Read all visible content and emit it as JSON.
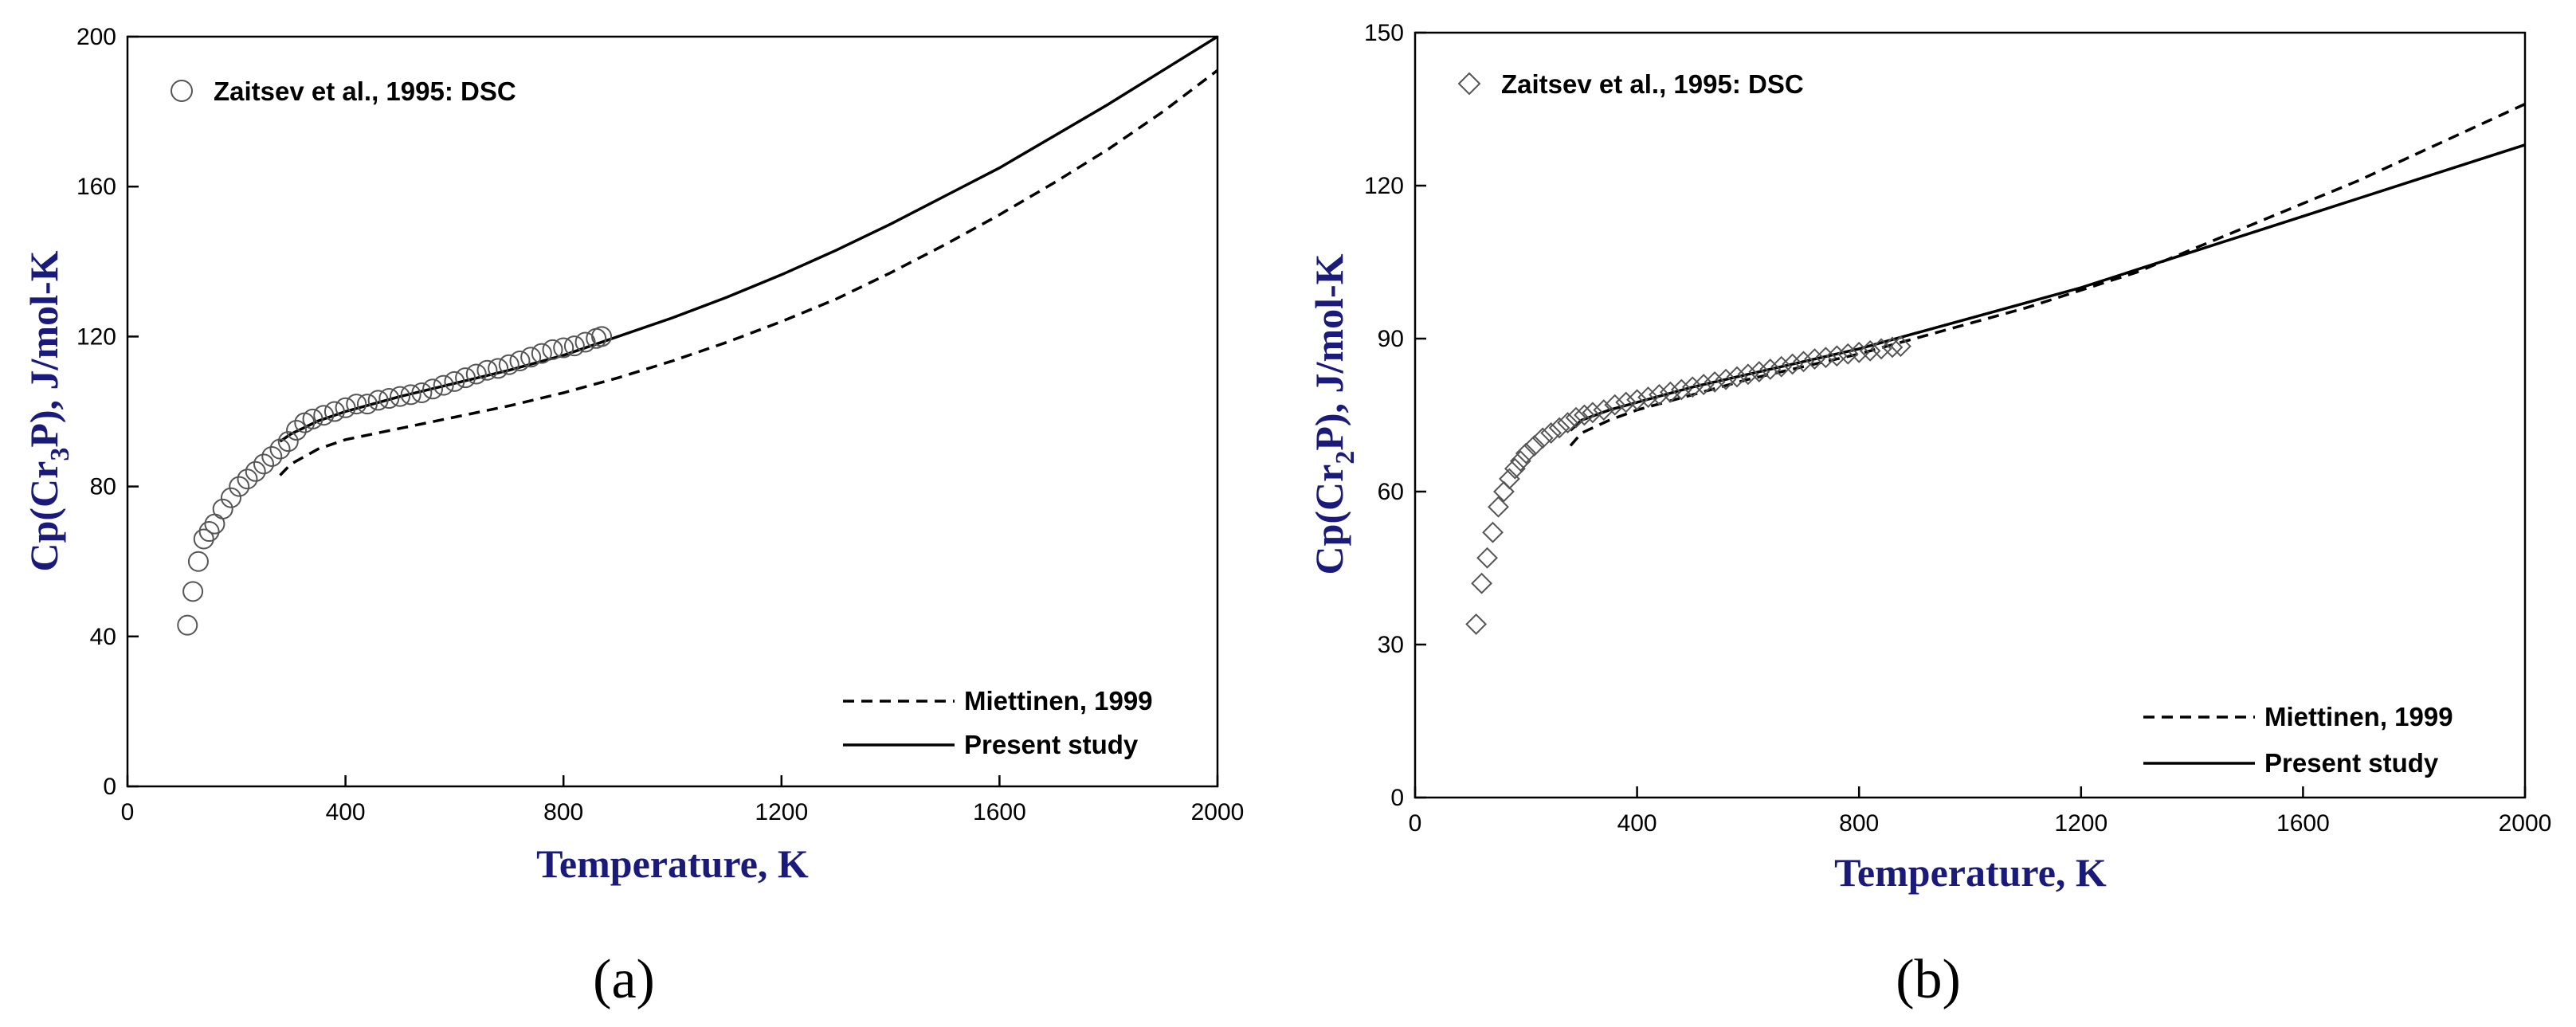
{
  "chart_data": [
    {
      "type": "line",
      "panel_label": "(a)",
      "xlabel": "Temperature, K",
      "ylabel_parts": [
        "Cp(Cr",
        "3",
        "P), J/mol-K"
      ],
      "xlim": [
        0,
        2000
      ],
      "ylim": [
        0,
        200
      ],
      "x_ticks": [
        0,
        400,
        800,
        1200,
        1600,
        2000
      ],
      "y_ticks": [
        0,
        40,
        80,
        120,
        160,
        200
      ],
      "grid": false,
      "scatter": {
        "name": "Zaitsev et al., 1995: DSC",
        "marker": "circle",
        "x": [
          110,
          120,
          130,
          140,
          150,
          160,
          175,
          190,
          205,
          220,
          235,
          250,
          265,
          280,
          295,
          310,
          325,
          340,
          360,
          380,
          400,
          420,
          440,
          460,
          480,
          500,
          520,
          540,
          560,
          580,
          600,
          620,
          640,
          660,
          680,
          700,
          720,
          740,
          760,
          780,
          800,
          820,
          840,
          860,
          870
        ],
        "y": [
          43,
          52,
          60,
          66,
          68,
          70,
          74,
          77,
          80,
          82,
          84,
          86,
          88,
          90,
          92,
          95,
          97,
          98,
          99,
          100,
          101,
          102,
          102,
          103,
          103.5,
          104,
          104.5,
          105,
          106,
          107,
          108,
          109,
          110,
          111,
          111.5,
          112.5,
          113.5,
          114.5,
          115.5,
          116.5,
          117,
          117.5,
          118.5,
          119.5,
          120
        ]
      },
      "series": [
        {
          "name": "Miettinen, 1999",
          "style": "dashed",
          "x": [
            280,
            300,
            350,
            400,
            500,
            600,
            700,
            800,
            900,
            1000,
            1100,
            1200,
            1300,
            1400,
            1500,
            1600,
            1700,
            1800,
            1900,
            2000
          ],
          "y": [
            83,
            86,
            90,
            92.5,
            95.5,
            98.5,
            101.5,
            105,
            109,
            113.5,
            118.5,
            124,
            130,
            137,
            144.5,
            152.5,
            161,
            170,
            180,
            191
          ]
        },
        {
          "name": "Present study",
          "style": "solid",
          "x": [
            280,
            300,
            350,
            400,
            500,
            600,
            700,
            800,
            900,
            1000,
            1100,
            1200,
            1300,
            1400,
            1500,
            1600,
            1700,
            1800,
            1900,
            2000
          ],
          "y": [
            92,
            94,
            97.5,
            100,
            104,
            107.5,
            111,
            115,
            120,
            125,
            130.5,
            136.5,
            143,
            150,
            157.5,
            165,
            173.5,
            182,
            191,
            200
          ]
        }
      ]
    },
    {
      "type": "line",
      "panel_label": "(b)",
      "xlabel": "Temperature, K",
      "ylabel_parts": [
        "Cp(Cr",
        "2",
        "P), J/mol-K"
      ],
      "xlim": [
        0,
        2000
      ],
      "ylim": [
        0,
        150
      ],
      "x_ticks": [
        0,
        400,
        800,
        1200,
        1600,
        2000
      ],
      "y_ticks": [
        0,
        30,
        60,
        90,
        120,
        150
      ],
      "grid": false,
      "scatter": {
        "name": "Zaitsev et al., 1995: DSC",
        "marker": "diamond",
        "x": [
          110,
          120,
          130,
          140,
          150,
          160,
          170,
          180,
          190,
          200,
          215,
          230,
          245,
          260,
          275,
          290,
          305,
          320,
          340,
          360,
          380,
          400,
          420,
          440,
          460,
          480,
          500,
          520,
          540,
          560,
          580,
          600,
          620,
          640,
          660,
          680,
          700,
          720,
          740,
          760,
          780,
          800,
          820,
          840,
          860,
          875
        ],
        "y": [
          34,
          42,
          47,
          52,
          57,
          60,
          62.5,
          64.5,
          66,
          67.5,
          69,
          70.5,
          71.5,
          72.5,
          73.5,
          74.5,
          75,
          75.5,
          76,
          77,
          77.5,
          78,
          78.5,
          79,
          79.5,
          80,
          80.5,
          81,
          81.5,
          82,
          82.5,
          83,
          83.5,
          84,
          84.5,
          85,
          85.5,
          86,
          86.3,
          86.6,
          87,
          87.3,
          87.6,
          88,
          88.3,
          88.5
        ]
      },
      "series": [
        {
          "name": "Miettinen, 1999",
          "style": "dashed",
          "x": [
            280,
            300,
            350,
            400,
            500,
            600,
            700,
            800,
            900,
            1000,
            1100,
            1200,
            1300,
            1400,
            1500,
            1600,
            1700,
            1800,
            1900,
            2000
          ],
          "y": [
            69,
            71.5,
            74,
            76,
            79,
            82,
            84.5,
            87,
            90,
            93,
            96,
            99.5,
            103,
            107.5,
            112,
            116.5,
            121,
            126,
            131,
            136
          ]
        },
        {
          "name": "Present study",
          "style": "solid",
          "x": [
            280,
            300,
            350,
            400,
            500,
            600,
            700,
            800,
            900,
            1000,
            1100,
            1200,
            1300,
            1400,
            1500,
            1600,
            1700,
            1800,
            1900,
            2000
          ],
          "y": [
            72,
            74,
            76,
            77.5,
            80.5,
            83,
            85.5,
            88,
            91,
            94,
            97,
            100,
            103.5,
            107,
            110.5,
            114,
            117.5,
            121,
            124.5,
            128
          ]
        }
      ]
    }
  ]
}
